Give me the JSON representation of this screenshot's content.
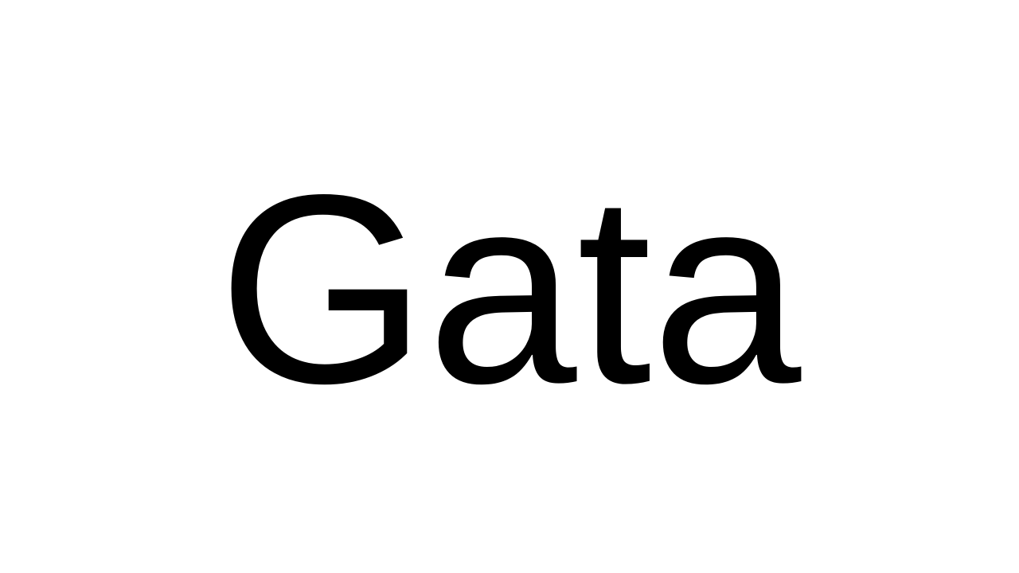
{
  "main": {
    "word": "Gata"
  },
  "colors": {
    "background": "#ffffff",
    "text": "#000000"
  }
}
